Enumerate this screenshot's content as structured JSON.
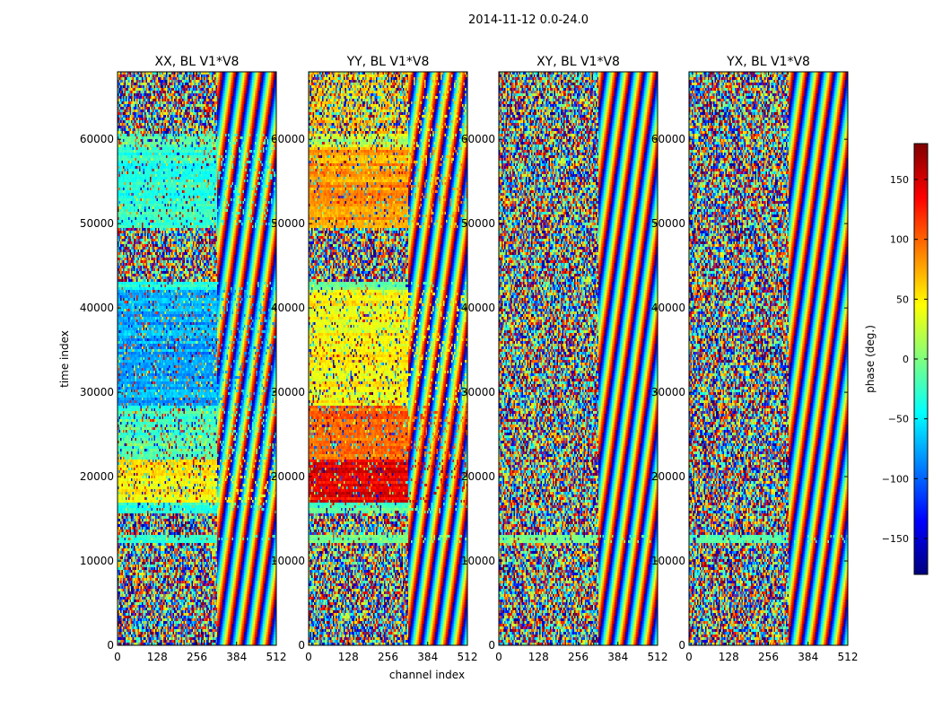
{
  "chart_data": {
    "type": "heatmap",
    "suptitle": "2014-11-12 0.0-24.0",
    "xlabel": "channel index",
    "ylabel": "time index",
    "x_ticks": [
      0,
      128,
      256,
      384,
      512
    ],
    "xlim": [
      0,
      512
    ],
    "y_ticks": [
      0,
      10000,
      20000,
      30000,
      40000,
      50000,
      60000
    ],
    "ylim": [
      0,
      68000
    ],
    "colorbar": {
      "label": "phase (deg.)",
      "ticks": [
        150,
        100,
        50,
        0,
        -50,
        -100,
        -150
      ],
      "range": [
        -180,
        180
      ],
      "colormap": "jet",
      "colors": [
        "#00007f",
        "#0000ff",
        "#007fff",
        "#00ffff",
        "#7fff7f",
        "#ffff00",
        "#ff7f00",
        "#ff0000",
        "#7f0000"
      ]
    },
    "panels": [
      {
        "title": "XX, BL V1*V8",
        "bands": [
          {
            "t0": 0,
            "t1": 12000,
            "mean": 0,
            "noise": 1
          },
          {
            "t0": 12000,
            "t1": 13200,
            "mean": -20,
            "noise": 0.1
          },
          {
            "t0": 13200,
            "t1": 15500,
            "mean": 0,
            "noise": 1
          },
          {
            "t0": 15500,
            "t1": 17000,
            "mean": -25,
            "noise": 0.15
          },
          {
            "t0": 17000,
            "t1": 22000,
            "mean": 50,
            "noise": 0.2
          },
          {
            "t0": 22000,
            "t1": 28500,
            "mean": -20,
            "noise": 0.25
          },
          {
            "t0": 28500,
            "t1": 42000,
            "mean": -75,
            "noise": 0.2
          },
          {
            "t0": 42000,
            "t1": 43000,
            "mean": -30,
            "noise": 0.1
          },
          {
            "t0": 43000,
            "t1": 49500,
            "mean": 0,
            "noise": 1
          },
          {
            "t0": 49500,
            "t1": 59000,
            "mean": -30,
            "noise": 0.15
          },
          {
            "t0": 59000,
            "t1": 60500,
            "mean": -20,
            "noise": 0.3
          },
          {
            "t0": 60500,
            "t1": 68000,
            "mean": 0,
            "noise": 1
          }
        ]
      },
      {
        "title": "YY, BL V1*V8",
        "bands": [
          {
            "t0": 0,
            "t1": 12000,
            "mean": 0,
            "noise": 1
          },
          {
            "t0": 12000,
            "t1": 13200,
            "mean": 0,
            "noise": 0.1
          },
          {
            "t0": 13200,
            "t1": 15500,
            "mean": 0,
            "noise": 1
          },
          {
            "t0": 15500,
            "t1": 17000,
            "mean": -10,
            "noise": 0.15
          },
          {
            "t0": 17000,
            "t1": 22000,
            "mean": 140,
            "noise": 0.15
          },
          {
            "t0": 22000,
            "t1": 28500,
            "mean": 100,
            "noise": 0.2
          },
          {
            "t0": 28500,
            "t1": 42000,
            "mean": 45,
            "noise": 0.2
          },
          {
            "t0": 42000,
            "t1": 43000,
            "mean": 0,
            "noise": 0.1
          },
          {
            "t0": 43000,
            "t1": 49500,
            "mean": 0,
            "noise": 1
          },
          {
            "t0": 49500,
            "t1": 59000,
            "mean": 80,
            "noise": 0.15
          },
          {
            "t0": 59000,
            "t1": 60500,
            "mean": 20,
            "noise": 0.3
          },
          {
            "t0": 60500,
            "t1": 68000,
            "mean": 60,
            "noise": 0.6
          }
        ]
      },
      {
        "title": "XY, BL V1*V8",
        "bands": [
          {
            "t0": 0,
            "t1": 12000,
            "mean": 0,
            "noise": 1
          },
          {
            "t0": 12000,
            "t1": 13200,
            "mean": -10,
            "noise": 0.1
          },
          {
            "t0": 13200,
            "t1": 68000,
            "mean": 0,
            "noise": 1
          }
        ]
      },
      {
        "title": "YX, BL V1*V8",
        "bands": [
          {
            "t0": 0,
            "t1": 12000,
            "mean": 0,
            "noise": 1
          },
          {
            "t0": 12000,
            "t1": 13200,
            "mean": -10,
            "noise": 0.1
          },
          {
            "t0": 13200,
            "t1": 68000,
            "mean": 0,
            "noise": 1
          }
        ]
      }
    ]
  }
}
